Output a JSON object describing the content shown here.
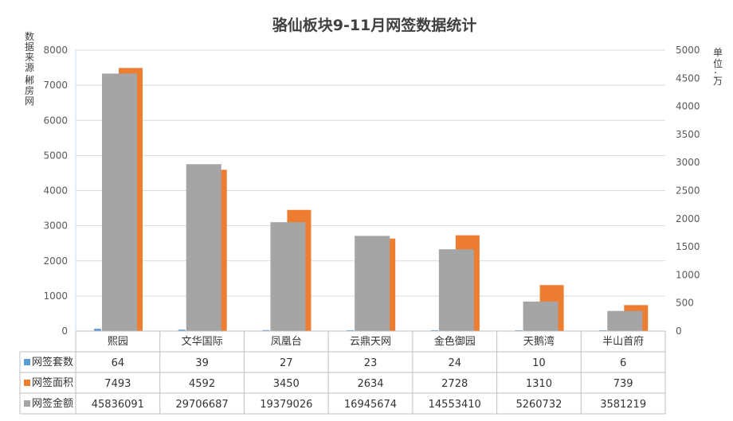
{
  "chart_data": {
    "type": "bar",
    "title": "骆仙板块9-11月网签数据统计",
    "source_label": "数据来源：郴房网",
    "unit_label": "单位：万",
    "categories": [
      "熙园",
      "文华国际",
      "凤凰台",
      "云鼎天网",
      "金色御园",
      "天鹅湾",
      "半山首府"
    ],
    "ylim_left": [
      0,
      8000
    ],
    "yticks_left": [
      0,
      1000,
      2000,
      3000,
      4000,
      5000,
      6000,
      7000,
      8000
    ],
    "ylim_right": [
      0,
      5000
    ],
    "yticks_right": [
      0,
      500,
      1000,
      1500,
      2000,
      2500,
      3000,
      3500,
      4000,
      4500,
      5000
    ],
    "grid": true,
    "series": [
      {
        "name": "网签套数",
        "color": "#5b9bd5",
        "axis": "left",
        "values": [
          64,
          39,
          27,
          23,
          24,
          10,
          6
        ]
      },
      {
        "name": "网签面积",
        "color": "#ed7d31",
        "axis": "left",
        "values": [
          7493,
          4592,
          3450,
          2634,
          2728,
          1310,
          739
        ]
      },
      {
        "name": "网签金额",
        "color": "#a5a5a5",
        "axis": "right",
        "values": [
          45836091,
          29706687,
          19379026,
          16945674,
          14553410,
          5260732,
          3581219
        ]
      }
    ]
  }
}
